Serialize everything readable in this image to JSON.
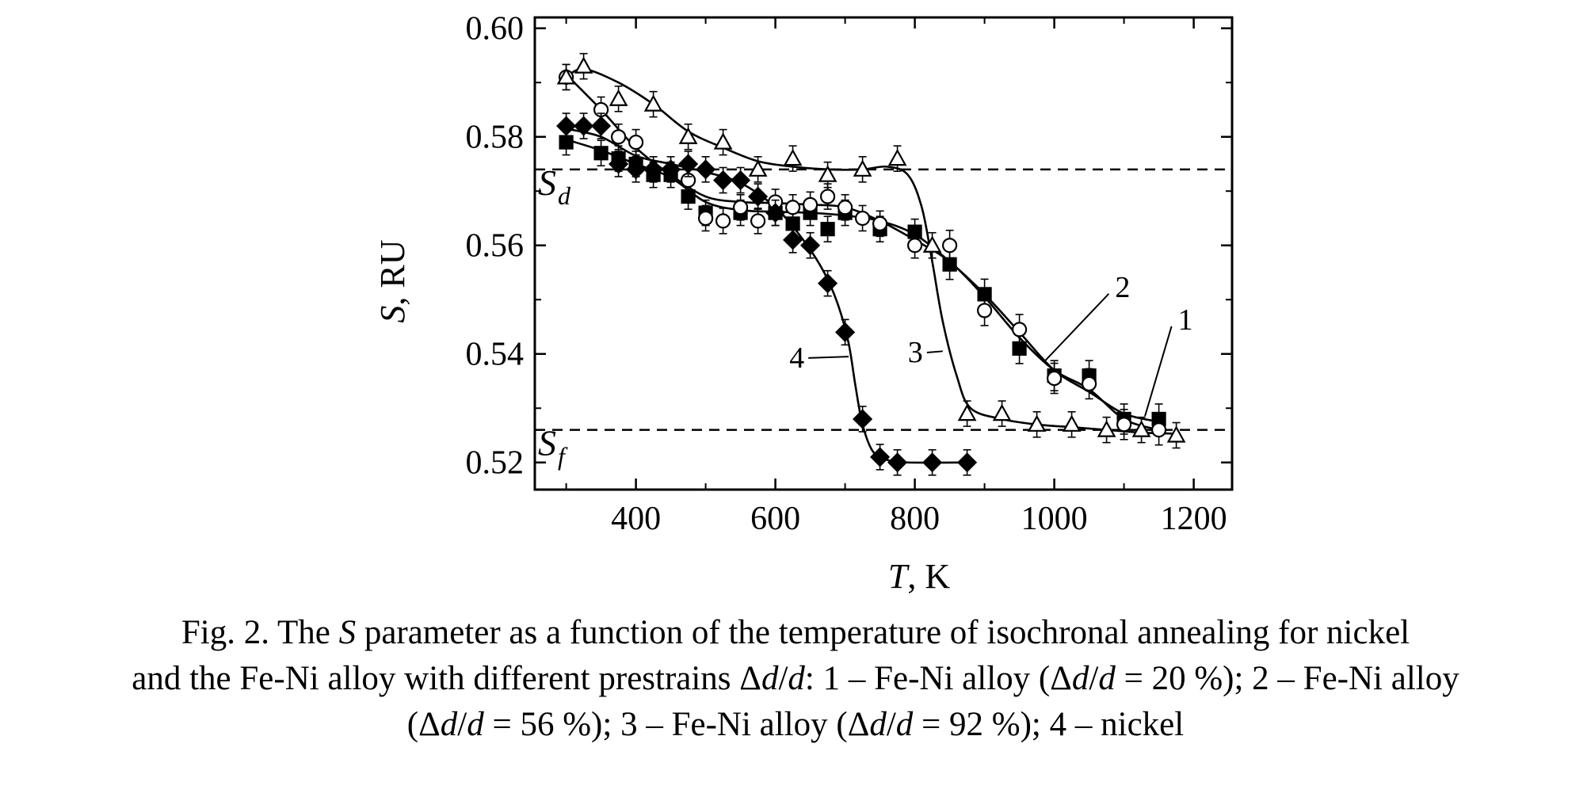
{
  "chart_data": {
    "type": "scatter",
    "title": "",
    "xlabel": {
      "var": "T",
      "unit": ", K"
    },
    "ylabel": {
      "var": "S",
      "unit": ", RU"
    },
    "xlim": [
      255,
      1255
    ],
    "ylim": [
      0.515,
      0.602
    ],
    "x_ticks": [
      400,
      600,
      800,
      1000,
      1200
    ],
    "y_ticks": [
      0.52,
      0.54,
      0.56,
      0.58,
      0.6
    ],
    "x_tick_labels": [
      "400",
      "600",
      "800",
      "1000",
      "1200"
    ],
    "y_tick_labels": [
      "0.52",
      "0.54",
      "0.56",
      "0.58",
      "0.60"
    ],
    "grid": false,
    "legend": "none",
    "reference_lines": [
      {
        "label": "S",
        "sub": "d",
        "y": 0.574,
        "style": "dashed"
      },
      {
        "label": "S",
        "sub": "f",
        "y": 0.526,
        "style": "dashed"
      }
    ],
    "series": [
      {
        "label": "1",
        "marker": "square-filled",
        "points": [
          [
            300,
            0.579
          ],
          [
            350,
            0.577
          ],
          [
            375,
            0.576
          ],
          [
            400,
            0.575
          ],
          [
            425,
            0.573
          ],
          [
            450,
            0.573
          ],
          [
            475,
            0.569
          ],
          [
            500,
            0.566
          ],
          [
            550,
            0.566
          ],
          [
            600,
            0.566
          ],
          [
            625,
            0.564
          ],
          [
            650,
            0.566
          ],
          [
            675,
            0.563
          ],
          [
            700,
            0.566
          ],
          [
            750,
            0.563
          ],
          [
            800,
            0.5625
          ],
          [
            850,
            0.5565
          ],
          [
            900,
            0.551
          ],
          [
            950,
            0.541
          ],
          [
            1000,
            0.536
          ],
          [
            1050,
            0.536
          ],
          [
            1100,
            0.528
          ],
          [
            1150,
            0.528
          ]
        ],
        "curve": [
          [
            300,
            0.5795
          ],
          [
            350,
            0.5775
          ],
          [
            400,
            0.575
          ],
          [
            450,
            0.5725
          ],
          [
            500,
            0.568
          ],
          [
            550,
            0.5665
          ],
          [
            600,
            0.5662
          ],
          [
            650,
            0.566
          ],
          [
            700,
            0.5655
          ],
          [
            750,
            0.5645
          ],
          [
            800,
            0.562
          ],
          [
            850,
            0.557
          ],
          [
            900,
            0.551
          ],
          [
            950,
            0.544
          ],
          [
            1000,
            0.537
          ],
          [
            1050,
            0.533
          ],
          [
            1100,
            0.529
          ],
          [
            1150,
            0.5275
          ]
        ]
      },
      {
        "label": "2",
        "marker": "circle-open",
        "points": [
          [
            300,
            0.591
          ],
          [
            350,
            0.585
          ],
          [
            375,
            0.58
          ],
          [
            400,
            0.579
          ],
          [
            475,
            0.572
          ],
          [
            500,
            0.565
          ],
          [
            525,
            0.5645
          ],
          [
            550,
            0.567
          ],
          [
            575,
            0.5645
          ],
          [
            600,
            0.568
          ],
          [
            625,
            0.567
          ],
          [
            650,
            0.5675
          ],
          [
            675,
            0.569
          ],
          [
            700,
            0.567
          ],
          [
            725,
            0.565
          ],
          [
            750,
            0.564
          ],
          [
            800,
            0.56
          ],
          [
            850,
            0.56
          ],
          [
            900,
            0.548
          ],
          [
            950,
            0.5445
          ],
          [
            1000,
            0.5355
          ],
          [
            1050,
            0.5345
          ],
          [
            1100,
            0.527
          ],
          [
            1150,
            0.526
          ]
        ],
        "curve": [
          [
            300,
            0.5915
          ],
          [
            350,
            0.585
          ],
          [
            400,
            0.578
          ],
          [
            450,
            0.573
          ],
          [
            500,
            0.569
          ],
          [
            550,
            0.568
          ],
          [
            600,
            0.5678
          ],
          [
            650,
            0.5675
          ],
          [
            700,
            0.567
          ],
          [
            750,
            0.5645
          ],
          [
            800,
            0.561
          ],
          [
            850,
            0.557
          ],
          [
            900,
            0.5505
          ],
          [
            950,
            0.543
          ],
          [
            1000,
            0.537
          ],
          [
            1050,
            0.5335
          ],
          [
            1100,
            0.528
          ],
          [
            1150,
            0.526
          ]
        ]
      },
      {
        "label": "3",
        "marker": "triangle-open",
        "points": [
          [
            300,
            0.591
          ],
          [
            325,
            0.593
          ],
          [
            375,
            0.587
          ],
          [
            425,
            0.586
          ],
          [
            475,
            0.58
          ],
          [
            525,
            0.579
          ],
          [
            575,
            0.574
          ],
          [
            625,
            0.576
          ],
          [
            675,
            0.573
          ],
          [
            725,
            0.574
          ],
          [
            775,
            0.576
          ],
          [
            825,
            0.56
          ],
          [
            875,
            0.529
          ],
          [
            925,
            0.529
          ],
          [
            975,
            0.527
          ],
          [
            1025,
            0.527
          ],
          [
            1075,
            0.526
          ],
          [
            1125,
            0.526
          ],
          [
            1175,
            0.525
          ]
        ],
        "curve": [
          [
            300,
            0.591
          ],
          [
            325,
            0.5925
          ],
          [
            375,
            0.59
          ],
          [
            425,
            0.586
          ],
          [
            475,
            0.581
          ],
          [
            525,
            0.578
          ],
          [
            575,
            0.5755
          ],
          [
            625,
            0.5745
          ],
          [
            675,
            0.574
          ],
          [
            725,
            0.574
          ],
          [
            760,
            0.5745
          ],
          [
            790,
            0.573
          ],
          [
            810,
            0.567
          ],
          [
            825,
            0.557
          ],
          [
            840,
            0.546
          ],
          [
            860,
            0.536
          ],
          [
            880,
            0.53
          ],
          [
            925,
            0.528
          ],
          [
            975,
            0.527
          ],
          [
            1025,
            0.5265
          ],
          [
            1075,
            0.526
          ],
          [
            1125,
            0.5255
          ],
          [
            1175,
            0.5253
          ]
        ]
      },
      {
        "label": "4",
        "marker": "diamond-filled",
        "points": [
          [
            300,
            0.582
          ],
          [
            325,
            0.582
          ],
          [
            350,
            0.582
          ],
          [
            375,
            0.575
          ],
          [
            400,
            0.574
          ],
          [
            425,
            0.574
          ],
          [
            450,
            0.574
          ],
          [
            475,
            0.575
          ],
          [
            500,
            0.574
          ],
          [
            525,
            0.572
          ],
          [
            550,
            0.572
          ],
          [
            575,
            0.569
          ],
          [
            600,
            0.566
          ],
          [
            625,
            0.561
          ],
          [
            650,
            0.56
          ],
          [
            675,
            0.553
          ],
          [
            700,
            0.544
          ],
          [
            725,
            0.528
          ],
          [
            750,
            0.521
          ],
          [
            775,
            0.52
          ],
          [
            825,
            0.52
          ],
          [
            875,
            0.52
          ]
        ],
        "curve": [
          [
            300,
            0.5815
          ],
          [
            350,
            0.58
          ],
          [
            400,
            0.5765
          ],
          [
            450,
            0.575
          ],
          [
            500,
            0.5735
          ],
          [
            550,
            0.5715
          ],
          [
            600,
            0.567
          ],
          [
            640,
            0.561
          ],
          [
            670,
            0.555
          ],
          [
            690,
            0.549
          ],
          [
            705,
            0.542
          ],
          [
            715,
            0.534
          ],
          [
            725,
            0.527
          ],
          [
            740,
            0.522
          ],
          [
            760,
            0.5205
          ],
          [
            790,
            0.52
          ],
          [
            875,
            0.52
          ]
        ]
      }
    ],
    "series_labels": [
      {
        "text": "1",
        "label_at": [
          1175,
          0.5445
        ],
        "target": [
          1130,
          0.5285
        ]
      },
      {
        "text": "2",
        "label_at": [
          1085,
          0.5505
        ],
        "target": [
          985,
          0.5385
        ]
      },
      {
        "text": "3",
        "label_at": [
          790,
          0.5385
        ],
        "target": [
          840,
          0.5405
        ]
      },
      {
        "text": "4",
        "label_at": [
          620,
          0.5375
        ],
        "target": [
          705,
          0.5395
        ]
      }
    ]
  },
  "caption": {
    "line1": {
      "a": "Fig. 2. The ",
      "b": "S",
      "c": " parameter as a function of the temperature of isochronal annealing for nickel"
    },
    "line2": {
      "a": "and the Fe-Ni alloy with different prestrains Δ",
      "b": "d",
      "c": "/",
      "d": "d",
      "e": ": 1 – Fe-Ni alloy (Δ",
      "f": "d",
      "g": "/",
      "h": "d",
      "i": " = 20 %); 2 – Fe-Ni alloy"
    },
    "line3": {
      "a": "(Δ",
      "b": "d",
      "c": "/",
      "d": "d",
      "e": " = 56 %); 3 – Fe-Ni alloy (Δ",
      "f": "d",
      "g": "/",
      "h": "d",
      "i": " = 92 %); 4 – nickel"
    }
  }
}
